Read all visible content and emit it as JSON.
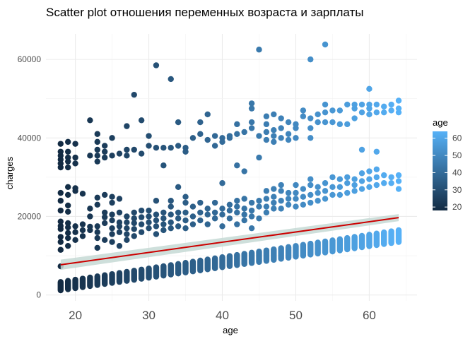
{
  "chart_data": {
    "type": "scatter",
    "title": "Scatter plot отношения переменных возраста и зарплаты",
    "xlabel": "age",
    "ylabel": "charges",
    "xlim": [
      16,
      66.5
    ],
    "ylim": [
      -1500,
      66500
    ],
    "xticks": [
      20,
      30,
      40,
      50,
      60
    ],
    "yticks": [
      0,
      20000,
      40000,
      60000
    ],
    "ytick_labels": [
      "0",
      "20000",
      "40000",
      "60000"
    ],
    "grid": true,
    "colorbar": {
      "title": "age",
      "min": 18,
      "max": 64,
      "ticks": [
        20,
        30,
        40,
        50,
        60
      ],
      "low_color": "#132B43",
      "high_color": "#56B1F7"
    },
    "trend_line": {
      "color": "#cc0000",
      "band_color": "#c5d9d5",
      "x": [
        18,
        64
      ],
      "y": [
        7700,
        19700
      ],
      "band_halfwidth": [
        1300,
        900
      ]
    },
    "bands": [
      {
        "name": "low",
        "x_start": 18,
        "x_end": 64,
        "y_bottom_start": 1200,
        "y_bottom_end": 13500,
        "y_top_start": 3300,
        "y_top_end": 16500
      }
    ],
    "points": [
      [
        18,
        7300
      ],
      [
        18,
        11500
      ],
      [
        18,
        13500
      ],
      [
        18,
        14800
      ],
      [
        18,
        16800
      ],
      [
        18,
        17600
      ],
      [
        18,
        18700
      ],
      [
        18,
        21500
      ],
      [
        18,
        24000
      ],
      [
        18,
        26000
      ],
      [
        19,
        12500
      ],
      [
        19,
        14500
      ],
      [
        19,
        15800
      ],
      [
        19,
        17200
      ],
      [
        19,
        18300
      ],
      [
        19,
        21200
      ],
      [
        19,
        22800
      ],
      [
        19,
        25500
      ],
      [
        19,
        27500
      ],
      [
        20,
        14000
      ],
      [
        20,
        16000
      ],
      [
        20,
        17500
      ],
      [
        20,
        26500
      ],
      [
        20,
        27200
      ],
      [
        21,
        15000
      ],
      [
        21,
        16500
      ],
      [
        21,
        18000
      ],
      [
        21,
        25800
      ],
      [
        22,
        16500
      ],
      [
        22,
        17400
      ],
      [
        22,
        20000
      ],
      [
        22,
        22000
      ],
      [
        23,
        12000
      ],
      [
        23,
        14500
      ],
      [
        23,
        16000
      ],
      [
        23,
        17500
      ],
      [
        23,
        23000
      ],
      [
        23,
        24800
      ],
      [
        24,
        14000
      ],
      [
        24,
        18300
      ],
      [
        24,
        19800
      ],
      [
        24,
        21000
      ],
      [
        24,
        25500
      ],
      [
        25,
        13500
      ],
      [
        25,
        15500
      ],
      [
        25,
        17000
      ],
      [
        25,
        19000
      ],
      [
        25,
        20500
      ],
      [
        25,
        23500
      ],
      [
        25,
        25000
      ],
      [
        26,
        12500
      ],
      [
        26,
        16000
      ],
      [
        26,
        17500
      ],
      [
        26,
        18500
      ],
      [
        26,
        21000
      ],
      [
        26,
        24500
      ],
      [
        27,
        14000
      ],
      [
        27,
        15500
      ],
      [
        27,
        17000
      ],
      [
        27,
        18500
      ],
      [
        27,
        20000
      ],
      [
        28,
        15000
      ],
      [
        28,
        16800
      ],
      [
        28,
        18300
      ],
      [
        28,
        19500
      ],
      [
        28,
        21000
      ],
      [
        29,
        16000
      ],
      [
        29,
        18000
      ],
      [
        29,
        19800
      ],
      [
        29,
        21500
      ],
      [
        30,
        17000
      ],
      [
        30,
        18500
      ],
      [
        30,
        20000
      ],
      [
        30,
        21500
      ],
      [
        31,
        15500
      ],
      [
        31,
        17500
      ],
      [
        31,
        19000
      ],
      [
        31,
        20500
      ],
      [
        31,
        24000
      ],
      [
        32,
        16500
      ],
      [
        32,
        18000
      ],
      [
        32,
        19500
      ],
      [
        32,
        21000
      ],
      [
        33,
        17000
      ],
      [
        33,
        18500
      ],
      [
        33,
        20500
      ],
      [
        33,
        22500
      ],
      [
        33,
        24000
      ],
      [
        34,
        17500
      ],
      [
        34,
        19500
      ],
      [
        34,
        21000
      ],
      [
        34,
        27500
      ],
      [
        35,
        17000
      ],
      [
        35,
        19000
      ],
      [
        35,
        21000
      ],
      [
        35,
        23500
      ],
      [
        35,
        25000
      ],
      [
        36,
        18000
      ],
      [
        36,
        20000
      ],
      [
        36,
        22500
      ],
      [
        37,
        19000
      ],
      [
        37,
        21000
      ],
      [
        37,
        23500
      ],
      [
        38,
        18000
      ],
      [
        38,
        20500
      ],
      [
        38,
        22000
      ],
      [
        39,
        19500
      ],
      [
        39,
        21000
      ],
      [
        39,
        23500
      ],
      [
        40,
        17500
      ],
      [
        40,
        20500
      ],
      [
        40,
        22000
      ],
      [
        40,
        28500
      ],
      [
        41,
        19500
      ],
      [
        41,
        21500
      ],
      [
        41,
        23000
      ],
      [
        42,
        18000
      ],
      [
        42,
        21000
      ],
      [
        42,
        22500
      ],
      [
        42,
        24000
      ],
      [
        43,
        19000
      ],
      [
        43,
        20500
      ],
      [
        43,
        22000
      ],
      [
        43,
        24500
      ],
      [
        44,
        17000
      ],
      [
        44,
        20000
      ],
      [
        44,
        21500
      ],
      [
        44,
        23500
      ],
      [
        45,
        19500
      ],
      [
        45,
        22500
      ],
      [
        45,
        24000
      ],
      [
        46,
        21000
      ],
      [
        46,
        22500
      ],
      [
        46,
        24500
      ],
      [
        46,
        26500
      ],
      [
        47,
        22000
      ],
      [
        47,
        23500
      ],
      [
        47,
        25000
      ],
      [
        47,
        27000
      ],
      [
        48,
        22000
      ],
      [
        48,
        24000
      ],
      [
        48,
        26500
      ],
      [
        48,
        28000
      ],
      [
        49,
        23000
      ],
      [
        49,
        24500
      ],
      [
        49,
        26000
      ],
      [
        50,
        22500
      ],
      [
        50,
        24500
      ],
      [
        50,
        26000
      ],
      [
        50,
        28000
      ],
      [
        51,
        23000
      ],
      [
        51,
        25000
      ],
      [
        51,
        27000
      ],
      [
        52,
        23500
      ],
      [
        52,
        25500
      ],
      [
        52,
        28000
      ],
      [
        52,
        29500
      ],
      [
        53,
        24000
      ],
      [
        53,
        26000
      ],
      [
        53,
        27500
      ],
      [
        54,
        24500
      ],
      [
        54,
        26500
      ],
      [
        54,
        28500
      ],
      [
        55,
        25500
      ],
      [
        55,
        27500
      ],
      [
        55,
        30000
      ],
      [
        56,
        25500
      ],
      [
        56,
        27500
      ],
      [
        56,
        29500
      ],
      [
        57,
        26000
      ],
      [
        57,
        28500
      ],
      [
        57,
        30000
      ],
      [
        58,
        26500
      ],
      [
        58,
        28000
      ],
      [
        58,
        29500
      ],
      [
        59,
        27000
      ],
      [
        59,
        29000
      ],
      [
        59,
        31000
      ],
      [
        60,
        27500
      ],
      [
        60,
        29500
      ],
      [
        60,
        31500
      ],
      [
        61,
        28000
      ],
      [
        61,
        30000
      ],
      [
        61,
        32000
      ],
      [
        62,
        28500
      ],
      [
        62,
        30500
      ],
      [
        63,
        28500
      ],
      [
        63,
        30000
      ],
      [
        64,
        27000
      ],
      [
        64,
        29000
      ],
      [
        64,
        30500
      ],
      [
        18,
        32500
      ],
      [
        18,
        33500
      ],
      [
        18,
        34500
      ],
      [
        18,
        35500
      ],
      [
        18,
        36500
      ],
      [
        18,
        38500
      ],
      [
        19,
        32500
      ],
      [
        19,
        34000
      ],
      [
        19,
        35000
      ],
      [
        19,
        36500
      ],
      [
        19,
        39000
      ],
      [
        20,
        33500
      ],
      [
        20,
        35000
      ],
      [
        20,
        38500
      ],
      [
        22,
        35500
      ],
      [
        22,
        44500
      ],
      [
        23,
        34000
      ],
      [
        23,
        35500
      ],
      [
        23,
        37000
      ],
      [
        23,
        39000
      ],
      [
        23,
        41000
      ],
      [
        24,
        35000
      ],
      [
        24,
        36500
      ],
      [
        24,
        38000
      ],
      [
        25,
        35500
      ],
      [
        25,
        40000
      ],
      [
        26,
        36000
      ],
      [
        27,
        35500
      ],
      [
        27,
        37000
      ],
      [
        27,
        43000
      ],
      [
        28,
        37000
      ],
      [
        28,
        51000
      ],
      [
        29,
        36000
      ],
      [
        29,
        44500
      ],
      [
        30,
        38000
      ],
      [
        30,
        40500
      ],
      [
        31,
        37500
      ],
      [
        31,
        58500
      ],
      [
        32,
        33000
      ],
      [
        32,
        37500
      ],
      [
        33,
        37500
      ],
      [
        33,
        55000
      ],
      [
        34,
        38000
      ],
      [
        34,
        44000
      ],
      [
        35,
        36500
      ],
      [
        35,
        37500
      ],
      [
        36,
        40000
      ],
      [
        37,
        41000
      ],
      [
        37,
        44000
      ],
      [
        38,
        39500
      ],
      [
        38,
        46000
      ],
      [
        39,
        38000
      ],
      [
        39,
        40500
      ],
      [
        40,
        40000
      ],
      [
        40,
        39000
      ],
      [
        41,
        40000
      ],
      [
        41,
        40500
      ],
      [
        42,
        41000
      ],
      [
        42,
        33000
      ],
      [
        42,
        43500
      ],
      [
        43,
        41500
      ],
      [
        43,
        31500
      ],
      [
        44,
        42500
      ],
      [
        44,
        44000
      ],
      [
        44,
        47500
      ],
      [
        44,
        48800
      ],
      [
        45,
        40500
      ],
      [
        45,
        62500
      ],
      [
        45,
        35000
      ],
      [
        46,
        39500
      ],
      [
        46,
        41500
      ],
      [
        46,
        43500
      ],
      [
        46,
        45500
      ],
      [
        47,
        39000
      ],
      [
        47,
        40500
      ],
      [
        47,
        42000
      ],
      [
        47,
        46000
      ],
      [
        48,
        40000
      ],
      [
        48,
        42500
      ],
      [
        48,
        45000
      ],
      [
        49,
        39500
      ],
      [
        49,
        41000
      ],
      [
        49,
        44000
      ],
      [
        50,
        40000
      ],
      [
        50,
        42500
      ],
      [
        50,
        43500
      ],
      [
        51,
        45500
      ],
      [
        51,
        47000
      ],
      [
        52,
        40000
      ],
      [
        52,
        42500
      ],
      [
        52,
        45000
      ],
      [
        52,
        60000
      ],
      [
        53,
        44000
      ],
      [
        53,
        46000
      ],
      [
        54,
        44000
      ],
      [
        54,
        46500
      ],
      [
        54,
        48500
      ],
      [
        54,
        63800
      ],
      [
        55,
        44000
      ],
      [
        55,
        47000
      ],
      [
        56,
        43500
      ],
      [
        56,
        47000
      ],
      [
        57,
        43500
      ],
      [
        57,
        48500
      ],
      [
        58,
        45000
      ],
      [
        58,
        47500
      ],
      [
        58,
        48500
      ],
      [
        59,
        37000
      ],
      [
        59,
        46500
      ],
      [
        59,
        48500
      ],
      [
        60,
        46000
      ],
      [
        60,
        47500
      ],
      [
        60,
        48500
      ],
      [
        60,
        52500
      ],
      [
        61,
        36500
      ],
      [
        61,
        46500
      ],
      [
        61,
        48500
      ],
      [
        62,
        46500
      ],
      [
        62,
        48000
      ],
      [
        63,
        47000
      ],
      [
        63,
        48500
      ],
      [
        64,
        46500
      ],
      [
        64,
        47500
      ],
      [
        64,
        49500
      ]
    ]
  }
}
